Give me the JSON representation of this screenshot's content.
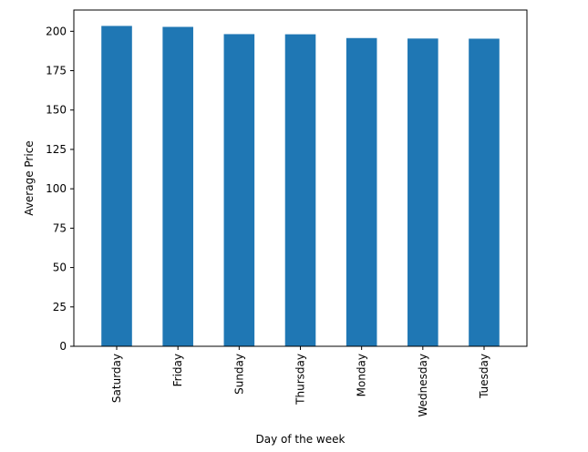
{
  "chart_data": {
    "type": "bar",
    "title": "",
    "xlabel": "Day of the week",
    "ylabel": "Average Price",
    "categories": [
      "Saturday",
      "Friday",
      "Sunday",
      "Thursday",
      "Monday",
      "Wednesday",
      "Tuesday"
    ],
    "values": [
      203.4,
      202.8,
      198.2,
      198.1,
      195.7,
      195.4,
      195.3
    ],
    "ylim": [
      0,
      213.5
    ],
    "yticks": [
      0,
      25,
      50,
      75,
      100,
      125,
      150,
      175,
      200
    ],
    "bar_color": "#1f77b4",
    "grid": false,
    "legend": "none"
  }
}
